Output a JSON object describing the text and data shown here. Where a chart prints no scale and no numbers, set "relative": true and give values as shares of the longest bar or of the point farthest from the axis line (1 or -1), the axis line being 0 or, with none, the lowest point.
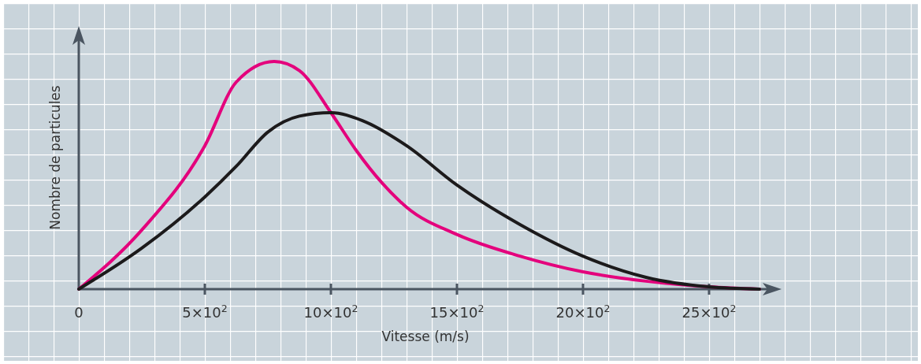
{
  "chart_data": {
    "type": "line",
    "relative": true,
    "xlabel": "Vitesse (m/s)",
    "ylabel": "Nombre de particules",
    "xlim": [
      0,
      2750
    ],
    "xticks": [
      0,
      {
        "value": 500,
        "label": "5×10$^{2}$"
      },
      {
        "value": 1000,
        "label": "10×10$^{2}$"
      },
      {
        "value": 1500,
        "label": "15×10$^{2}$"
      },
      {
        "value": 2000,
        "label": "20×10$^{2}$"
      },
      {
        "value": 2500,
        "label": "25×10$^{2}$"
      }
    ],
    "series": [
      {
        "color": "#e4007c",
        "x": [
          0,
          250,
          500,
          625,
          775,
          875,
          1000,
          1100,
          1200,
          1300,
          1500,
          1750,
          2000,
          2250,
          2500,
          2700
        ],
        "values": [
          0,
          0.26,
          0.63,
          0.91,
          1,
          0.96,
          0.775,
          0.61,
          0.47,
          0.36,
          0.24,
          0.145,
          0.076,
          0.035,
          0.01,
          0
        ]
      },
      {
        "color": "#1c1a1b",
        "x": [
          0,
          250,
          500,
          625,
          750,
          875,
          1000,
          1125,
          1300,
          1500,
          1750,
          2000,
          2250,
          2500,
          2700
        ],
        "values": [
          0,
          0.18,
          0.405,
          0.54,
          0.69,
          0.76,
          0.775,
          0.74,
          0.63,
          0.457,
          0.284,
          0.145,
          0.052,
          0.01,
          0
        ]
      }
    ]
  }
}
